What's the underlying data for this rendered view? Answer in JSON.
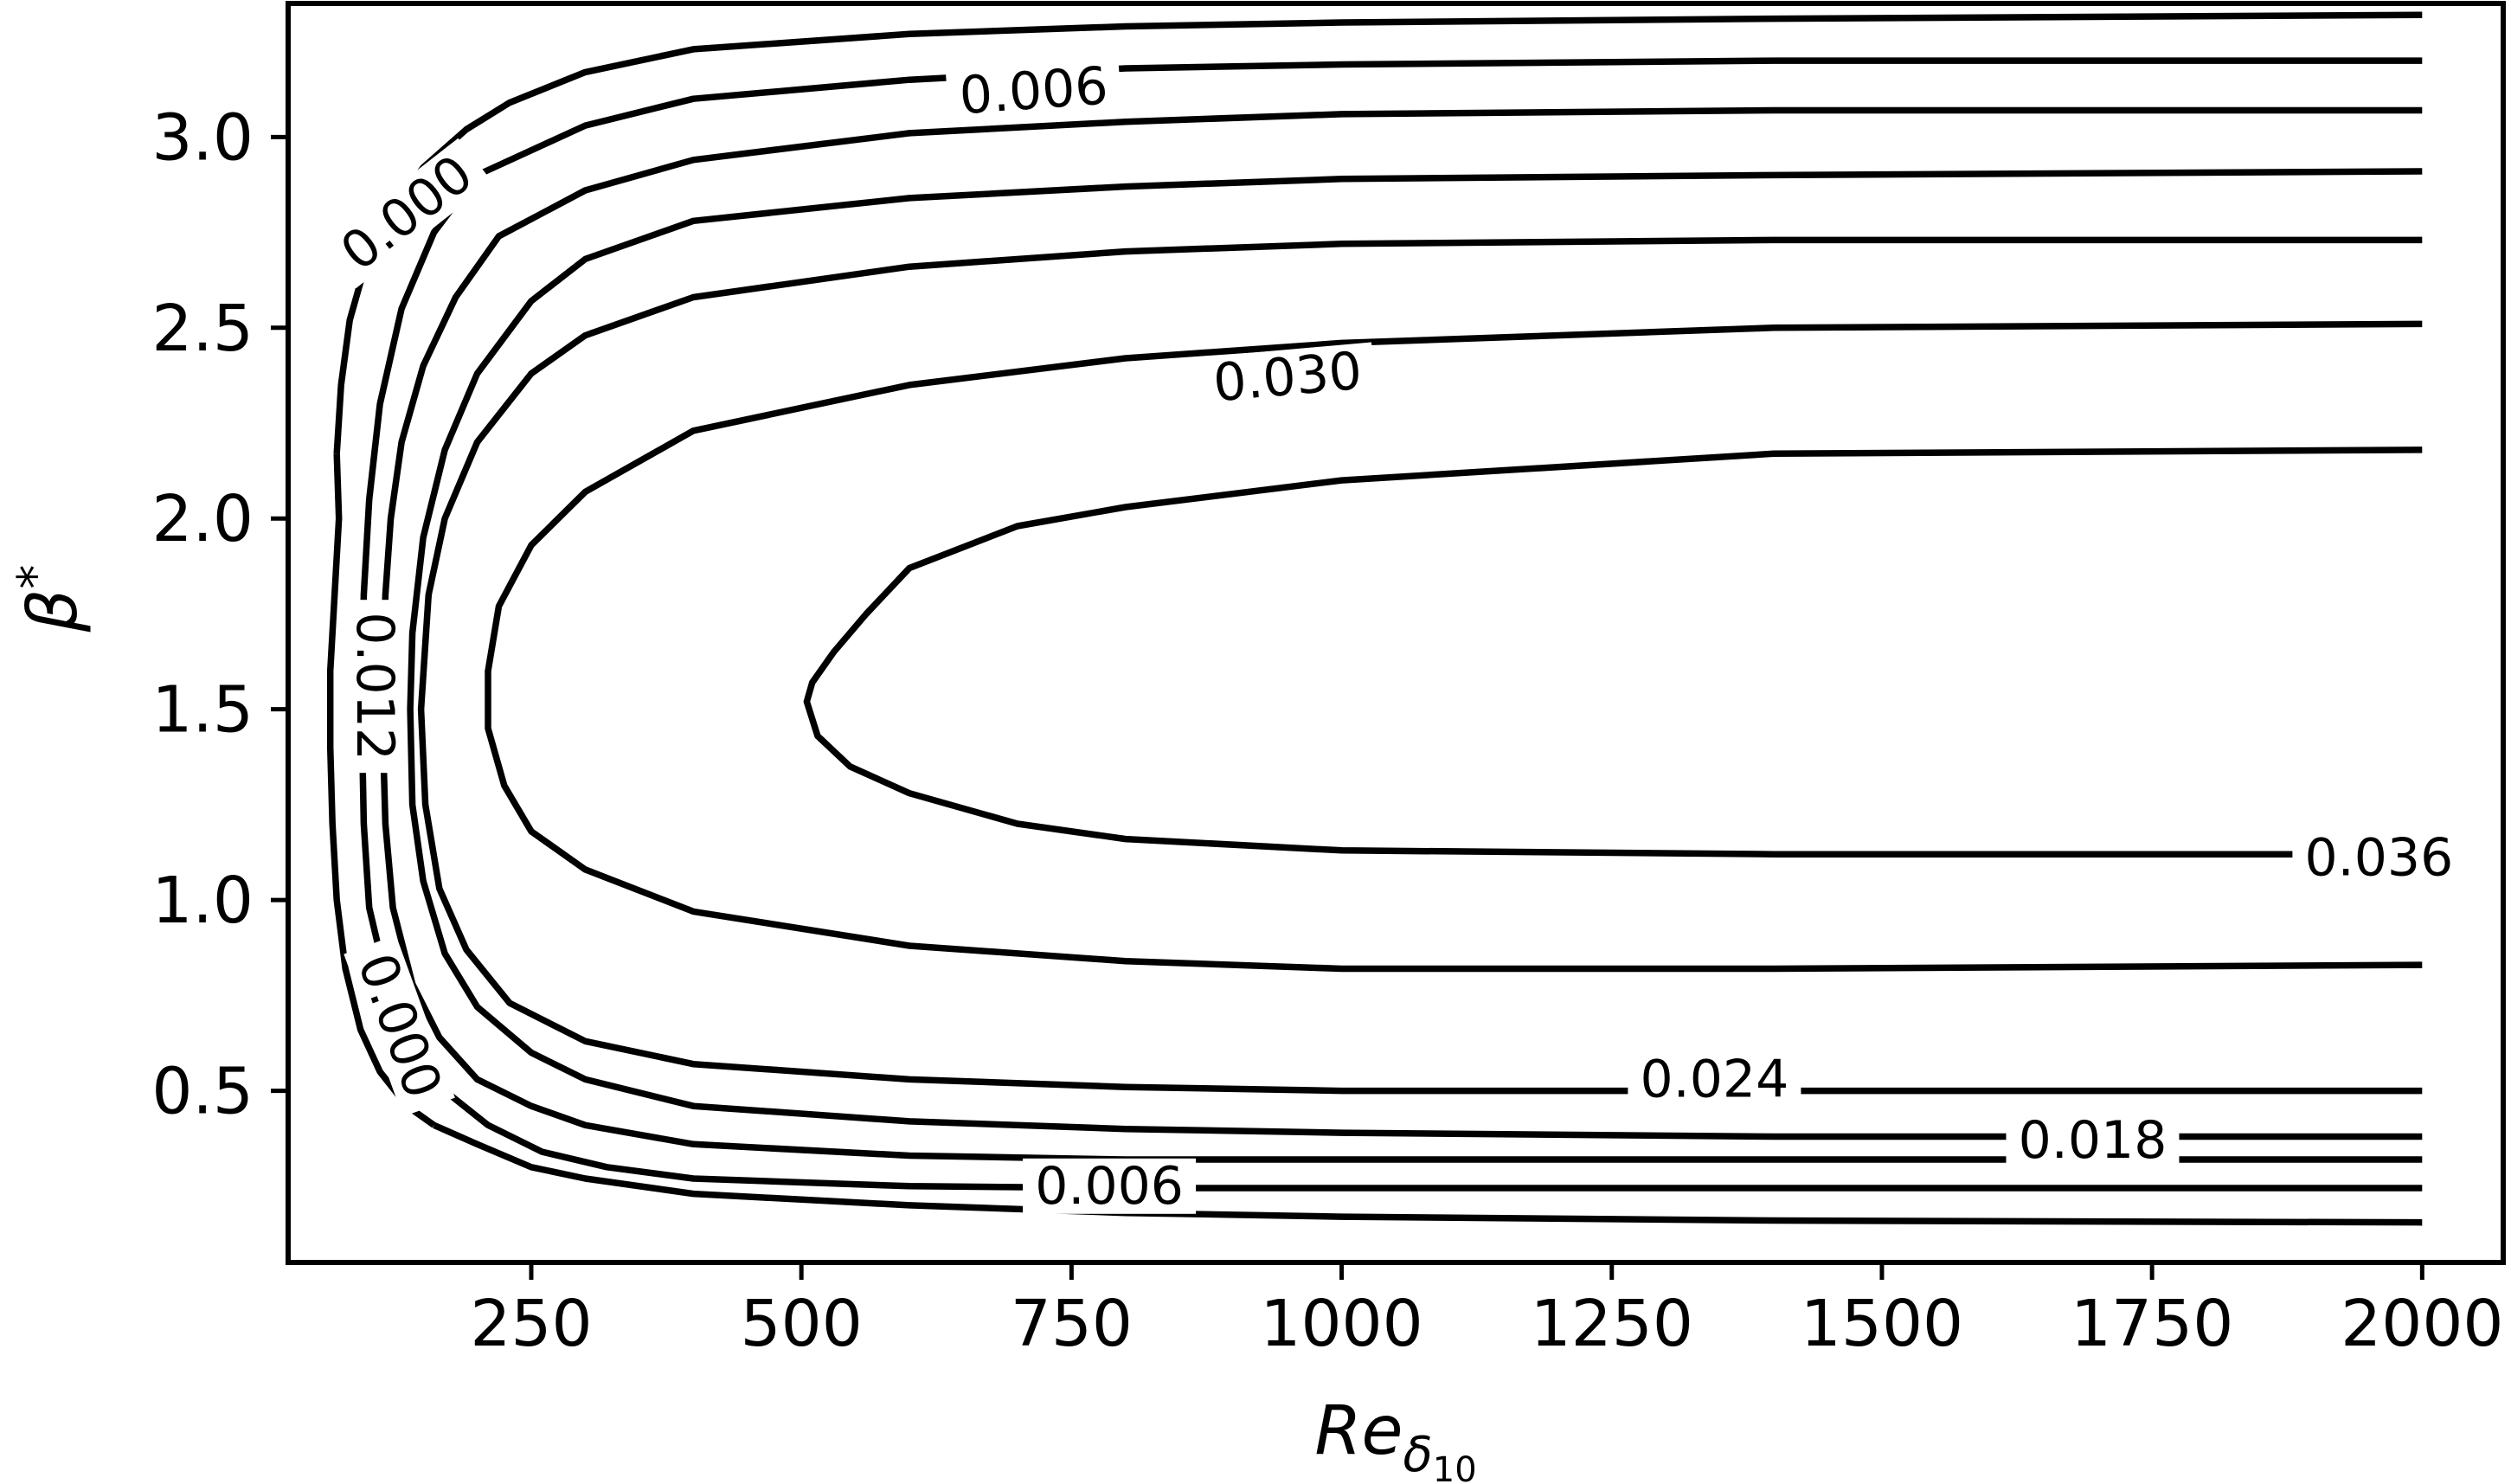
{
  "chart_data": {
    "type": "contour",
    "xlabel": "Re",
    "xlabel_subscript": "δ",
    "xlabel_subscript2": "10",
    "ylabel": "β",
    "ylabel_superscript": "*",
    "xlim": [
      25,
      2075
    ],
    "ylim": [
      0.05,
      3.35
    ],
    "xticks": [
      250,
      500,
      750,
      1000,
      1250,
      1500,
      1750,
      2000
    ],
    "yticks": [
      0.5,
      1.0,
      1.5,
      2.0,
      2.5,
      3.0
    ],
    "xtick_labels": [
      "250",
      "500",
      "750",
      "1000",
      "1250",
      "1500",
      "1750",
      "2000"
    ],
    "ytick_labels": [
      "0.5",
      "1.0",
      "1.5",
      "2.0",
      "2.5",
      "3.0"
    ],
    "color": "#000000",
    "levels": [
      {
        "value": 0.0,
        "points": [
          [
            70,
            2.17
          ],
          [
            72,
            2.0
          ],
          [
            68,
            1.8
          ],
          [
            64,
            1.6
          ],
          [
            64,
            1.5
          ],
          [
            64,
            1.4
          ],
          [
            66,
            1.2
          ],
          [
            70,
            1.0
          ],
          [
            78,
            0.82
          ],
          [
            92,
            0.66
          ],
          [
            110,
            0.55
          ],
          [
            135,
            0.46
          ],
          [
            160,
            0.41
          ]
        ],
        "upper": [
          [
            70,
            2.17
          ],
          [
            74,
            2.35
          ],
          [
            82,
            2.52
          ],
          [
            96,
            2.66
          ],
          [
            120,
            2.8
          ],
          [
            150,
            2.92
          ],
          [
            190,
            3.02
          ],
          [
            230,
            3.09
          ],
          [
            300,
            3.17
          ],
          [
            400,
            3.23
          ],
          [
            600,
            3.27
          ],
          [
            800,
            3.29
          ],
          [
            1000,
            3.3
          ],
          [
            1400,
            3.31
          ],
          [
            2000,
            3.32
          ]
        ],
        "lower": [
          [
            160,
            0.41
          ],
          [
            200,
            0.36
          ],
          [
            250,
            0.3
          ],
          [
            300,
            0.27
          ],
          [
            400,
            0.23
          ],
          [
            600,
            0.2
          ],
          [
            800,
            0.18
          ],
          [
            1000,
            0.17
          ],
          [
            1400,
            0.16
          ],
          [
            2000,
            0.155
          ]
        ]
      },
      {
        "value": 0.006,
        "upper": [
          [
            200,
            2.9
          ],
          [
            300,
            3.03
          ],
          [
            400,
            3.1
          ],
          [
            600,
            3.15
          ],
          [
            800,
            3.18
          ],
          [
            1000,
            3.19
          ],
          [
            1400,
            3.2
          ],
          [
            2000,
            3.2
          ]
        ],
        "side": [
          [
            200,
            2.9
          ],
          [
            160,
            2.75
          ],
          [
            130,
            2.55
          ],
          [
            110,
            2.3
          ],
          [
            100,
            2.05
          ],
          [
            95,
            1.8
          ],
          [
            93,
            1.5
          ],
          [
            95,
            1.2
          ],
          [
            100,
            0.98
          ],
          [
            115,
            0.8
          ],
          [
            140,
            0.62
          ],
          [
            170,
            0.5
          ],
          [
            210,
            0.41
          ],
          [
            260,
            0.34
          ],
          [
            320,
            0.3
          ],
          [
            400,
            0.27
          ],
          [
            600,
            0.25
          ],
          [
            800,
            0.245
          ],
          [
            1400,
            0.245
          ],
          [
            2000,
            0.245
          ]
        ]
      },
      {
        "value": 0.012,
        "upper": [
          [
            2000,
            3.07
          ],
          [
            1400,
            3.07
          ],
          [
            1000,
            3.06
          ],
          [
            800,
            3.04
          ],
          [
            600,
            3.01
          ],
          [
            400,
            2.94
          ],
          [
            300,
            2.86
          ],
          [
            220,
            2.74
          ],
          [
            180,
            2.58
          ],
          [
            150,
            2.4
          ],
          [
            130,
            2.2
          ],
          [
            120,
            2.0
          ],
          [
            115,
            1.8
          ],
          [
            112,
            1.5
          ],
          [
            115,
            1.2
          ],
          [
            122,
            0.98
          ],
          [
            140,
            0.78
          ],
          [
            165,
            0.64
          ],
          [
            200,
            0.53
          ],
          [
            250,
            0.46
          ],
          [
            300,
            0.41
          ],
          [
            400,
            0.36
          ],
          [
            600,
            0.33
          ],
          [
            800,
            0.32
          ],
          [
            1000,
            0.32
          ],
          [
            1400,
            0.32
          ],
          [
            2000,
            0.32
          ]
        ]
      },
      {
        "value": 0.018,
        "upper": [
          [
            2000,
            2.91
          ],
          [
            1400,
            2.9
          ],
          [
            1000,
            2.89
          ],
          [
            800,
            2.87
          ],
          [
            600,
            2.84
          ],
          [
            400,
            2.78
          ],
          [
            300,
            2.68
          ],
          [
            250,
            2.57
          ],
          [
            200,
            2.38
          ],
          [
            170,
            2.18
          ],
          [
            150,
            1.95
          ],
          [
            140,
            1.7
          ],
          [
            138,
            1.5
          ],
          [
            140,
            1.25
          ],
          [
            150,
            1.05
          ],
          [
            170,
            0.86
          ],
          [
            200,
            0.72
          ],
          [
            250,
            0.6
          ],
          [
            300,
            0.53
          ],
          [
            400,
            0.46
          ],
          [
            600,
            0.42
          ],
          [
            800,
            0.4
          ],
          [
            1000,
            0.39
          ],
          [
            1400,
            0.38
          ],
          [
            2000,
            0.38
          ]
        ]
      },
      {
        "value": 0.024,
        "upper": [
          [
            2000,
            2.73
          ],
          [
            1400,
            2.73
          ],
          [
            1000,
            2.72
          ],
          [
            800,
            2.7
          ],
          [
            600,
            2.66
          ],
          [
            400,
            2.58
          ],
          [
            300,
            2.48
          ],
          [
            250,
            2.38
          ],
          [
            200,
            2.2
          ],
          [
            170,
            2.0
          ],
          [
            155,
            1.8
          ],
          [
            148,
            1.5
          ],
          [
            152,
            1.25
          ],
          [
            165,
            1.03
          ],
          [
            190,
            0.87
          ],
          [
            230,
            0.73
          ],
          [
            300,
            0.63
          ],
          [
            400,
            0.57
          ],
          [
            600,
            0.53
          ],
          [
            800,
            0.51
          ],
          [
            1000,
            0.5
          ],
          [
            1400,
            0.5
          ],
          [
            2000,
            0.5
          ]
        ]
      },
      {
        "value": 0.03,
        "upper": [
          [
            2000,
            2.51
          ],
          [
            1400,
            2.5
          ],
          [
            1000,
            2.46
          ],
          [
            800,
            2.42
          ],
          [
            600,
            2.35
          ],
          [
            400,
            2.23
          ],
          [
            300,
            2.07
          ],
          [
            250,
            1.93
          ],
          [
            220,
            1.77
          ],
          [
            210,
            1.6
          ],
          [
            210,
            1.45
          ],
          [
            225,
            1.3
          ],
          [
            250,
            1.18
          ],
          [
            300,
            1.08
          ],
          [
            400,
            0.97
          ],
          [
            600,
            0.88
          ],
          [
            800,
            0.84
          ],
          [
            1000,
            0.82
          ],
          [
            1400,
            0.82
          ],
          [
            2000,
            0.83
          ]
        ]
      },
      {
        "value": 0.036,
        "upper": [
          [
            2000,
            2.18
          ],
          [
            1400,
            2.17
          ],
          [
            1000,
            2.1
          ],
          [
            800,
            2.03
          ],
          [
            700,
            1.98
          ],
          [
            600,
            1.87
          ],
          [
            560,
            1.75
          ],
          [
            530,
            1.65
          ],
          [
            510,
            1.57
          ],
          [
            505,
            1.52
          ],
          [
            515,
            1.43
          ],
          [
            545,
            1.35
          ],
          [
            600,
            1.28
          ],
          [
            700,
            1.2
          ],
          [
            800,
            1.16
          ],
          [
            1000,
            1.13
          ],
          [
            1400,
            1.12
          ],
          [
            1900,
            1.12
          ]
        ]
      }
    ],
    "labels": [
      {
        "text": "0.000",
        "x": 135,
        "y": 2.8,
        "angle": -38
      },
      {
        "text": "0.006",
        "x": 715,
        "y": 3.12,
        "angle": -4
      },
      {
        "text": "0.030",
        "x": 950,
        "y": 2.37,
        "angle": -5
      },
      {
        "text": "0.012",
        "x": 105,
        "y": 1.56,
        "angle": 90
      },
      {
        "text": "0.000",
        "x": 128,
        "y": 0.67,
        "angle": 70
      },
      {
        "text": "0.024",
        "x": 1345,
        "y": 0.53,
        "angle": 0
      },
      {
        "text": "0.018",
        "x": 1695,
        "y": 0.37,
        "angle": 0
      },
      {
        "text": "0.006",
        "x": 785,
        "y": 0.25,
        "angle": 0
      },
      {
        "text": "0.036",
        "x": 1960,
        "y": 1.11,
        "angle": 0
      }
    ]
  }
}
